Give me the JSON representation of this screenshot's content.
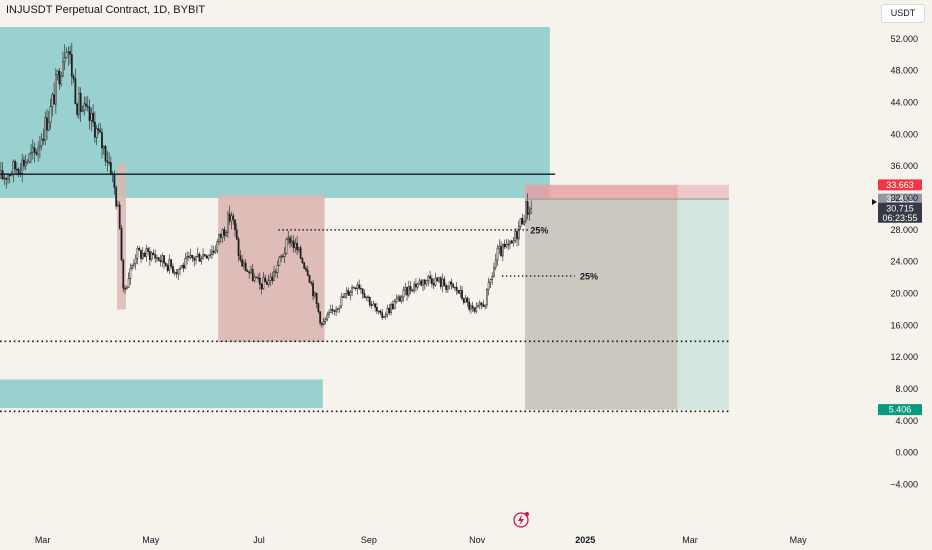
{
  "header": {
    "title": "INJUSDT Perpetual Contract, 1D, BYBIT",
    "currency": "USDT"
  },
  "colors": {
    "background": "#f6f3ec",
    "supply_zone": "#8fcccd",
    "range_box": "#dcb7b3",
    "risk_zone": "#e8a0a6",
    "hold_zone": "#c3c0b8",
    "reward_zone": "#cfe5df",
    "candles": "#1c1c1c",
    "price_badge": "#f23645",
    "mid_badge": "#9598a1",
    "current_badge": "#363a45",
    "target_badge": "#089981"
  },
  "chart_data": {
    "type": "candlestick",
    "title": "INJUSDT Perpetual Contract, 1D, BYBIT",
    "x_axis": {
      "range": [
        "2024-02-06",
        "2025-06-06"
      ],
      "tick_labels": [
        {
          "label": "Mar",
          "date": "2024-03-01"
        },
        {
          "label": "May",
          "date": "2024-05-01"
        },
        {
          "label": "Jul",
          "date": "2024-07-01"
        },
        {
          "label": "Sep",
          "date": "2024-09-01"
        },
        {
          "label": "Nov",
          "date": "2024-11-01"
        },
        {
          "label": "2025",
          "date": "2025-01-01"
        },
        {
          "label": "Mar",
          "date": "2025-03-01"
        },
        {
          "label": "May",
          "date": "2025-05-01"
        }
      ]
    },
    "y_axis": {
      "range": [
        -6,
        56
      ],
      "ticks": [
        "52.000",
        "48.000",
        "44.000",
        "40.000",
        "36.000",
        "32.000",
        "28.000",
        "24.000",
        "20.000",
        "16.000",
        "12.000",
        "8.000",
        "4.000",
        "0.000",
        "−4.000"
      ],
      "tick_values": [
        52,
        48,
        44,
        40,
        36,
        32,
        28,
        24,
        20,
        16,
        12,
        8,
        4,
        0,
        -4
      ]
    },
    "price_series": [
      {
        "date": "2024-02-06",
        "close": 34.5
      },
      {
        "date": "2024-02-15",
        "close": 36
      },
      {
        "date": "2024-02-25",
        "close": 37.5
      },
      {
        "date": "2024-03-05",
        "close": 43
      },
      {
        "date": "2024-03-14",
        "close": 52
      },
      {
        "date": "2024-03-20",
        "close": 44
      },
      {
        "date": "2024-03-30",
        "close": 41
      },
      {
        "date": "2024-04-08",
        "close": 36
      },
      {
        "date": "2024-04-13",
        "close": 29
      },
      {
        "date": "2024-04-15",
        "close": 20
      },
      {
        "date": "2024-04-22",
        "close": 25
      },
      {
        "date": "2024-05-01",
        "close": 25
      },
      {
        "date": "2024-05-15",
        "close": 23
      },
      {
        "date": "2024-05-25",
        "close": 24.5
      },
      {
        "date": "2024-06-05",
        "close": 25.5
      },
      {
        "date": "2024-06-15",
        "close": 30
      },
      {
        "date": "2024-06-20",
        "close": 24
      },
      {
        "date": "2024-07-01",
        "close": 21
      },
      {
        "date": "2024-07-08",
        "close": 22
      },
      {
        "date": "2024-07-18",
        "close": 27
      },
      {
        "date": "2024-07-28",
        "close": 23
      },
      {
        "date": "2024-08-05",
        "close": 16
      },
      {
        "date": "2024-08-15",
        "close": 19
      },
      {
        "date": "2024-08-25",
        "close": 21.5
      },
      {
        "date": "2024-09-07",
        "close": 17
      },
      {
        "date": "2024-09-25",
        "close": 21
      },
      {
        "date": "2024-10-05",
        "close": 22
      },
      {
        "date": "2024-10-20",
        "close": 20.5
      },
      {
        "date": "2024-10-30",
        "close": 17.5
      },
      {
        "date": "2024-11-05",
        "close": 19
      },
      {
        "date": "2024-11-12",
        "close": 25
      },
      {
        "date": "2024-11-20",
        "close": 26
      },
      {
        "date": "2024-11-28",
        "close": 30.7
      },
      {
        "date": "2024-12-02",
        "close": 30.7
      }
    ],
    "levels": [
      {
        "name": "resistance-line",
        "price": 35.0,
        "style": "solid"
      },
      {
        "name": "support-line",
        "price": 14.0,
        "style": "dotted"
      },
      {
        "name": "lower-dotted-line",
        "price": 5.2,
        "style": "dotted"
      }
    ],
    "zones": [
      {
        "name": "supply-zone-top",
        "price_top": 53.5,
        "price_bottom": 32.0
      },
      {
        "name": "demand-zone-bottom",
        "price_top": 9.2,
        "price_bottom": 5.6
      },
      {
        "name": "range-box",
        "price_top": 32.4,
        "price_bottom": 13.9
      },
      {
        "name": "drop-wick-box",
        "price_top": 36.3,
        "price_bottom": 18.0
      }
    ],
    "annotations": [
      {
        "label": "25%",
        "level": 28.0
      },
      {
        "label": "25%",
        "level": 22.2
      }
    ],
    "position": {
      "entry": 31.872,
      "stop": 33.663,
      "target": 5.406
    },
    "price_labels": {
      "stop": "33.663",
      "entry": "31.872",
      "current": "30.715",
      "countdown": "06:23:55",
      "target": "5.406"
    }
  }
}
